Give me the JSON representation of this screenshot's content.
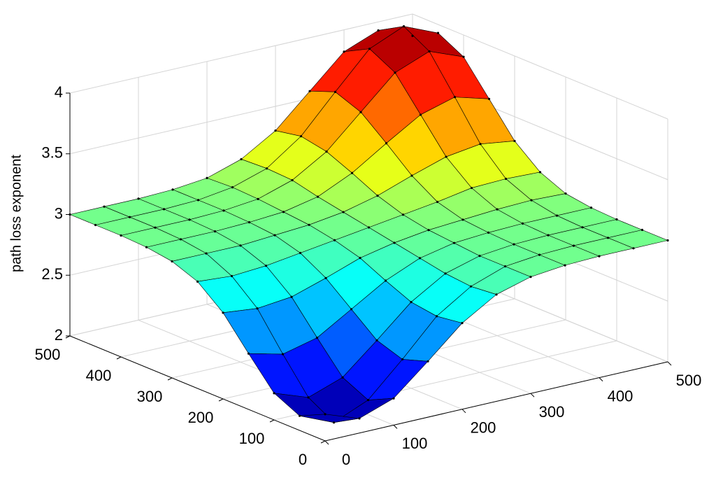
{
  "chart_data": {
    "type": "surface",
    "zlabel": "path loss exponent",
    "x": [
      0,
      50,
      100,
      150,
      200,
      250,
      300,
      350,
      400,
      450,
      500
    ],
    "y": [
      0,
      50,
      100,
      150,
      200,
      250,
      300,
      350,
      400,
      450,
      500
    ],
    "z": [
      [
        2.22,
        2.12,
        2.22,
        2.46,
        2.71,
        2.88,
        2.96,
        2.99,
        3,
        3,
        3
      ],
      [
        2.12,
        2.0,
        2.12,
        2.39,
        2.68,
        2.86,
        2.96,
        2.99,
        3,
        3,
        3
      ],
      [
        2.22,
        2.12,
        2.22,
        2.46,
        2.71,
        2.88,
        2.96,
        2.99,
        3,
        3,
        3
      ],
      [
        2.46,
        2.39,
        2.46,
        2.63,
        2.8,
        2.92,
        2.98,
        3.0,
        3.01,
        3.01,
        3.01
      ],
      [
        2.71,
        2.68,
        2.71,
        2.8,
        2.9,
        2.96,
        3.0,
        3.02,
        3.04,
        3.05,
        3.04
      ],
      [
        2.88,
        2.86,
        2.88,
        2.92,
        2.96,
        3.0,
        3.04,
        3.08,
        3.13,
        3.14,
        3.13
      ],
      [
        2.96,
        2.96,
        2.96,
        2.98,
        3.0,
        3.04,
        3.11,
        3.21,
        3.3,
        3.34,
        3.3
      ],
      [
        2.99,
        2.99,
        2.99,
        3.0,
        3.02,
        3.08,
        3.21,
        3.39,
        3.56,
        3.64,
        3.56
      ],
      [
        3,
        3,
        3,
        3.01,
        3.04,
        3.13,
        3.3,
        3.56,
        3.82,
        3.93,
        3.82
      ],
      [
        3,
        3,
        3,
        3.01,
        3.05,
        3.14,
        3.34,
        3.64,
        3.93,
        4.05,
        3.93
      ],
      [
        3,
        3,
        3,
        3.01,
        3.04,
        3.13,
        3.3,
        3.56,
        3.82,
        3.93,
        3.82
      ]
    ],
    "xlim": [
      0,
      500
    ],
    "ylim": [
      0,
      500
    ],
    "zlim": [
      2,
      4
    ],
    "xticks": [
      0,
      100,
      200,
      300,
      400,
      500
    ],
    "yticks": [
      0,
      100,
      200,
      300,
      400,
      500
    ],
    "zticks": [
      2,
      2.5,
      3,
      3.5,
      4
    ],
    "colormap": "jet",
    "grid": true
  }
}
